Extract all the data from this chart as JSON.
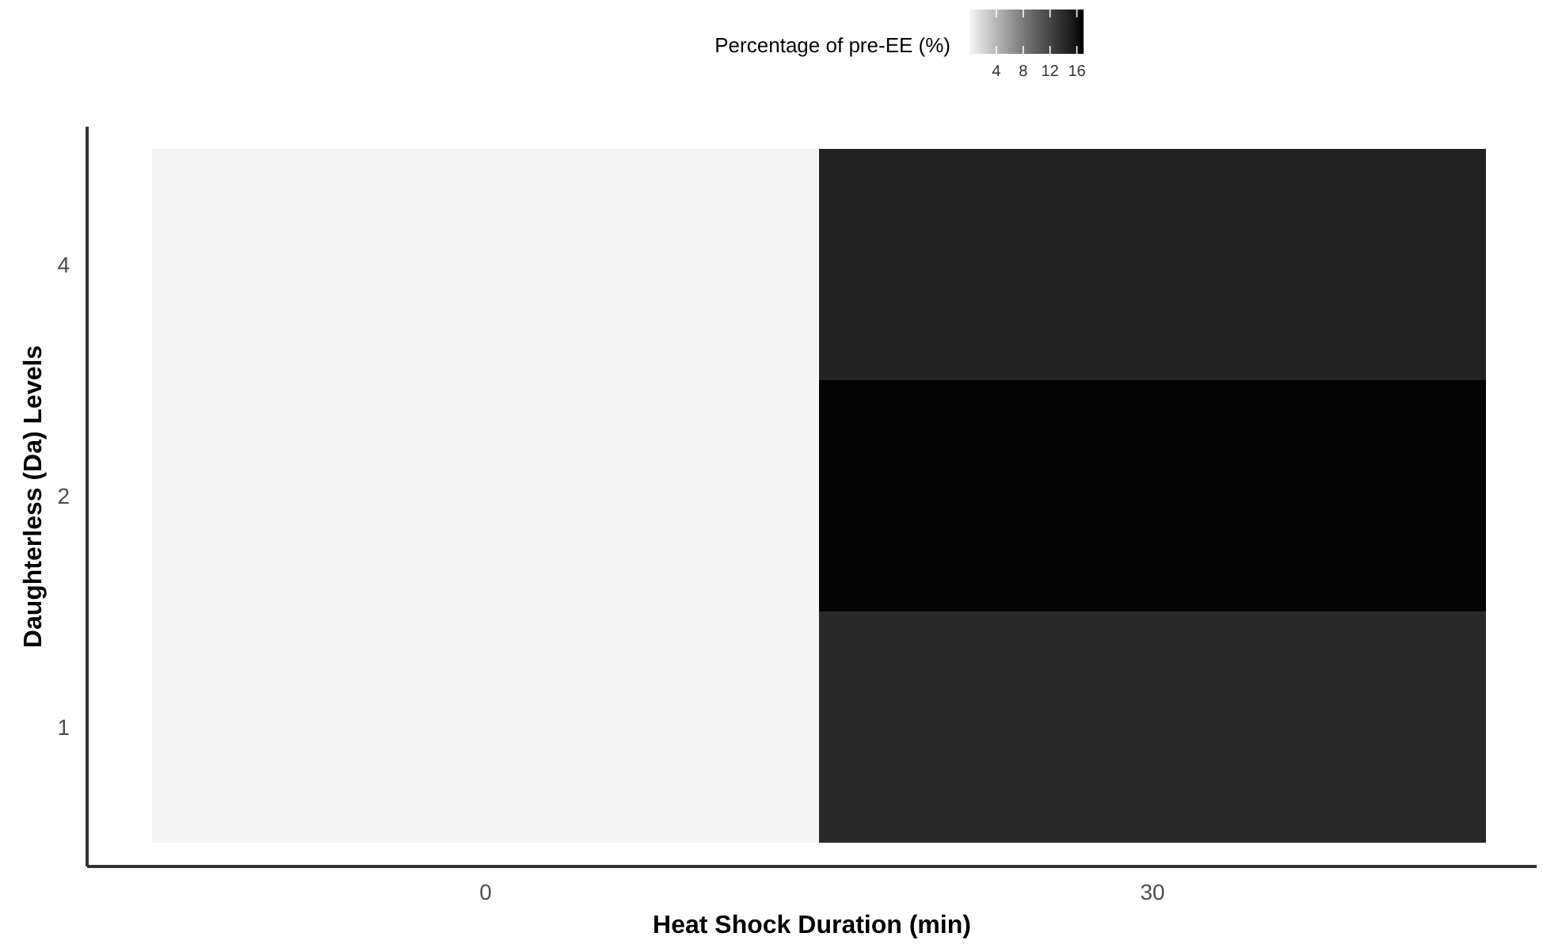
{
  "chart_data": {
    "type": "heatmap",
    "xlabel": "Heat Shock Duration (min)",
    "ylabel": "Daughterless (Da) Levels",
    "clabel": "Percentage of pre-EE (%)",
    "categories": [
      "0",
      "30"
    ],
    "y_categories": [
      "4",
      "2",
      "1"
    ],
    "cells": [
      [
        0.2,
        14.7
      ],
      [
        0.2,
        16.8
      ],
      [
        0.2,
        14.1
      ]
    ],
    "clim": [
      0,
      17
    ],
    "cticks": [
      4,
      8,
      12,
      16
    ]
  }
}
